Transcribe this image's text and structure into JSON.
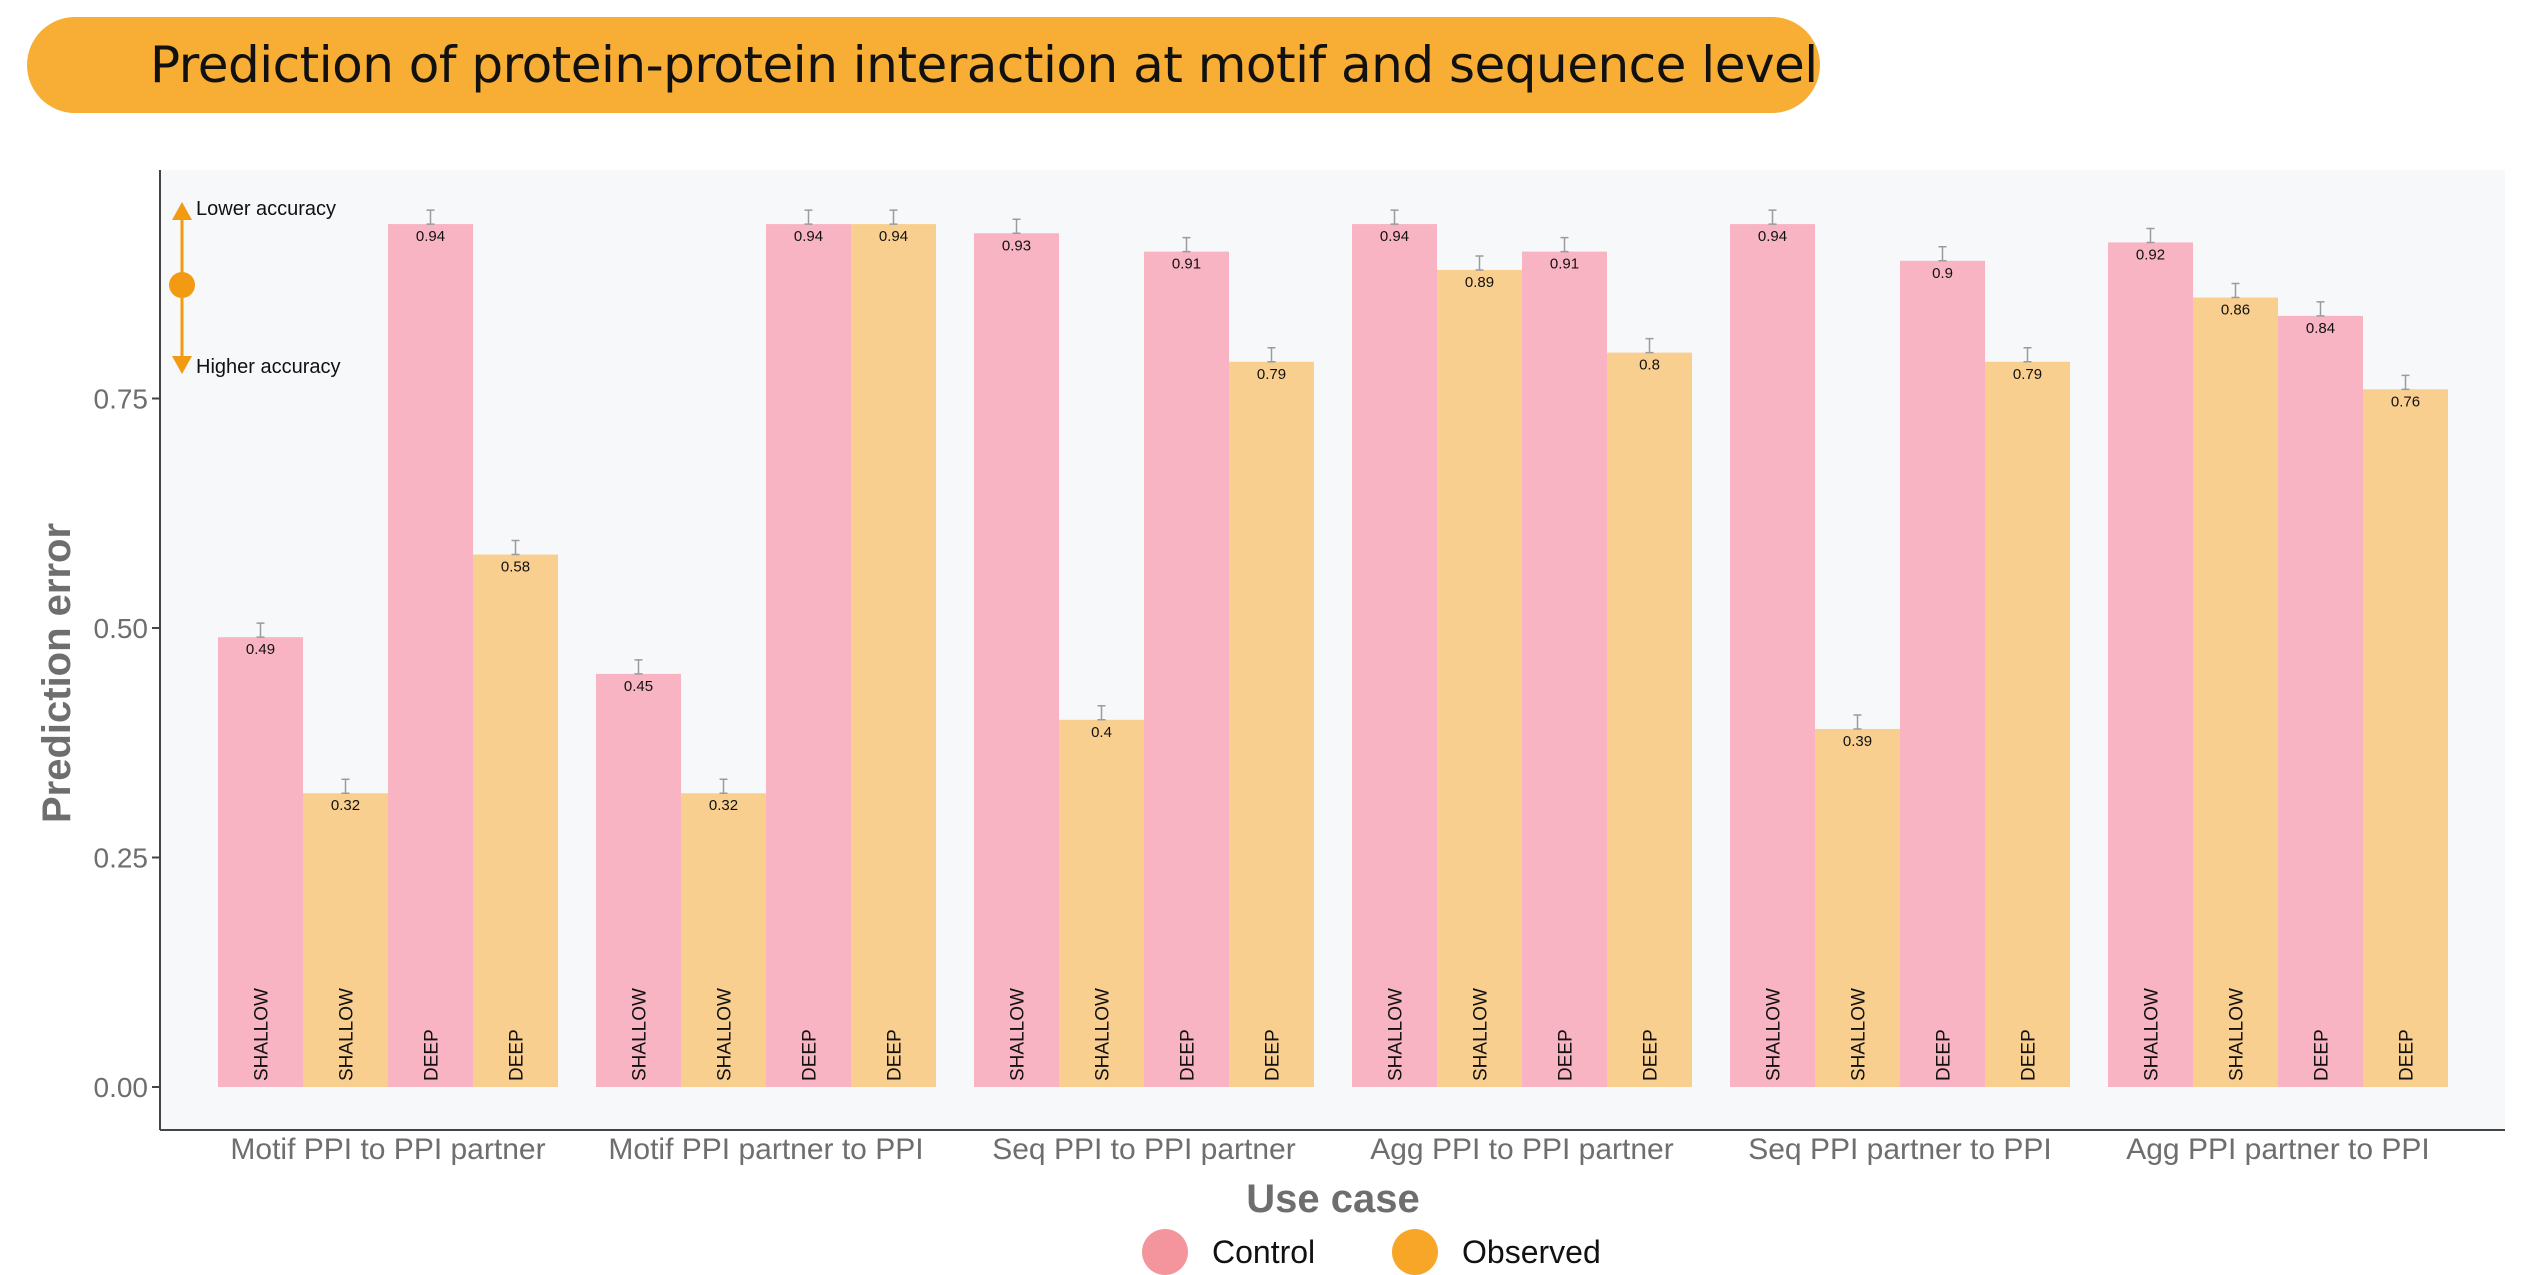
{
  "title": "Prediction of protein-protein interaction at motif and sequence level",
  "colors": {
    "control": "#F8B4C3",
    "observed": "#F9CF8F",
    "legend_control": "#F4959E",
    "legend_observed": "#F7A628",
    "accent": "#F29A12",
    "banner": "#F8AD34"
  },
  "annotations": {
    "up": "Lower accuracy",
    "down": "Higher accuracy"
  },
  "chart_data": {
    "type": "bar",
    "xlabel": "Use case",
    "ylabel": "Prediction error",
    "ylim": [
      0,
      1
    ],
    "yticks": [
      "0.00",
      "0.25",
      "0.50",
      "0.75"
    ],
    "grid": false,
    "legend": {
      "position": "bottom",
      "entries": [
        "Control",
        "Observed"
      ]
    },
    "groups": [
      {
        "name": "Motif PPI to PPI partner",
        "bars": [
          {
            "series": "Control",
            "model": "SHALLOW",
            "value": 0.49,
            "label": "0.49"
          },
          {
            "series": "Observed",
            "model": "SHALLOW",
            "value": 0.32,
            "label": "0.32"
          },
          {
            "series": "Control",
            "model": "DEEP",
            "value": 0.94,
            "label": "0.94"
          },
          {
            "series": "Observed",
            "model": "DEEP",
            "value": 0.58,
            "label": "0.58"
          }
        ]
      },
      {
        "name": "Motif PPI partner to PPI",
        "bars": [
          {
            "series": "Control",
            "model": "SHALLOW",
            "value": 0.45,
            "label": "0.45"
          },
          {
            "series": "Observed",
            "model": "SHALLOW",
            "value": 0.32,
            "label": "0.32"
          },
          {
            "series": "Control",
            "model": "DEEP",
            "value": 0.94,
            "label": "0.94"
          },
          {
            "series": "Observed",
            "model": "DEEP",
            "value": 0.94,
            "label": "0.94"
          }
        ]
      },
      {
        "name": "Seq PPI to PPI partner",
        "bars": [
          {
            "series": "Control",
            "model": "SHALLOW",
            "value": 0.93,
            "label": "0.93"
          },
          {
            "series": "Observed",
            "model": "SHALLOW",
            "value": 0.4,
            "label": "0.4"
          },
          {
            "series": "Control",
            "model": "DEEP",
            "value": 0.91,
            "label": "0.91"
          },
          {
            "series": "Observed",
            "model": "DEEP",
            "value": 0.79,
            "label": "0.79"
          }
        ]
      },
      {
        "name": "Agg PPI to PPI partner",
        "bars": [
          {
            "series": "Control",
            "model": "SHALLOW",
            "value": 0.94,
            "label": "0.94"
          },
          {
            "series": "Observed",
            "model": "SHALLOW",
            "value": 0.89,
            "label": "0.89"
          },
          {
            "series": "Control",
            "model": "DEEP",
            "value": 0.91,
            "label": "0.91"
          },
          {
            "series": "Observed",
            "model": "DEEP",
            "value": 0.8,
            "label": "0.8"
          }
        ]
      },
      {
        "name": "Seq PPI partner to PPI",
        "bars": [
          {
            "series": "Control",
            "model": "SHALLOW",
            "value": 0.94,
            "label": "0.94"
          },
          {
            "series": "Observed",
            "model": "SHALLOW",
            "value": 0.39,
            "label": "0.39"
          },
          {
            "series": "Control",
            "model": "DEEP",
            "value": 0.9,
            "label": "0.9"
          },
          {
            "series": "Observed",
            "model": "DEEP",
            "value": 0.79,
            "label": "0.79"
          }
        ]
      },
      {
        "name": "Agg PPI partner to PPI",
        "bars": [
          {
            "series": "Control",
            "model": "SHALLOW",
            "value": 0.92,
            "label": "0.92"
          },
          {
            "series": "Observed",
            "model": "SHALLOW",
            "value": 0.86,
            "label": "0.86"
          },
          {
            "series": "Control",
            "model": "DEEP",
            "value": 0.84,
            "label": "0.84"
          },
          {
            "series": "Observed",
            "model": "DEEP",
            "value": 0.76,
            "label": "0.76"
          }
        ]
      }
    ]
  }
}
